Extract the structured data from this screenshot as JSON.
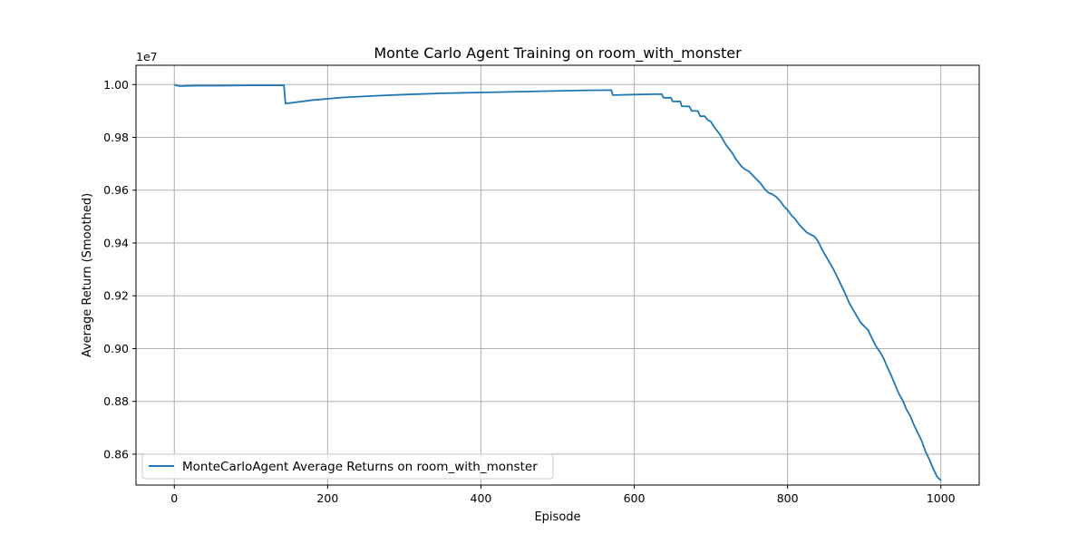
{
  "chart_data": {
    "type": "line",
    "title": "Monte Carlo Agent Training on room_with_monster",
    "xlabel": "Episode",
    "ylabel": "Average Return (Smoothed)",
    "y_offset_label": "1e7",
    "xlim": [
      -50,
      1050
    ],
    "ylim": [
      0.8483,
      1.0073
    ],
    "y_scale_factor": 10000000,
    "xticks": [
      0,
      200,
      400,
      600,
      800,
      1000
    ],
    "xtick_labels": [
      "0",
      "200",
      "400",
      "600",
      "800",
      "1000"
    ],
    "yticks": [
      0.86,
      0.88,
      0.9,
      0.92,
      0.94,
      0.96,
      0.98,
      1.0
    ],
    "ytick_labels": [
      "0.86",
      "0.88",
      "0.90",
      "0.92",
      "0.94",
      "0.96",
      "0.98",
      "1.00"
    ],
    "grid": true,
    "legend_position": "lower-left",
    "series": [
      {
        "name": "MonteCarloAgent Average Returns on room_with_monster",
        "color": "#1f77b4",
        "points": [
          [
            0,
            1.0
          ],
          [
            3,
            0.9996
          ],
          [
            8,
            0.9994
          ],
          [
            15,
            0.9995
          ],
          [
            30,
            0.9996
          ],
          [
            60,
            0.9996
          ],
          [
            100,
            0.9997
          ],
          [
            143,
            0.9997
          ],
          [
            145,
            0.9928
          ],
          [
            180,
            0.9941
          ],
          [
            220,
            0.9951
          ],
          [
            260,
            0.9957
          ],
          [
            300,
            0.9962
          ],
          [
            350,
            0.9967
          ],
          [
            400,
            0.997
          ],
          [
            450,
            0.9973
          ],
          [
            500,
            0.9976
          ],
          [
            540,
            0.9978
          ],
          [
            570,
            0.9979
          ],
          [
            572,
            0.996
          ],
          [
            600,
            0.9962
          ],
          [
            636,
            0.9964
          ],
          [
            638,
            0.995
          ],
          [
            648,
            0.995
          ],
          [
            650,
            0.9936
          ],
          [
            660,
            0.9936
          ],
          [
            662,
            0.9918
          ],
          [
            672,
            0.9917
          ],
          [
            675,
            0.99
          ],
          [
            683,
            0.99
          ],
          [
            686,
            0.988
          ],
          [
            692,
            0.988
          ],
          [
            696,
            0.9865
          ],
          [
            700,
            0.986
          ],
          [
            704,
            0.984
          ],
          [
            708,
            0.9825
          ],
          [
            712,
            0.981
          ],
          [
            716,
            0.979
          ],
          [
            720,
            0.977
          ],
          [
            724,
            0.9755
          ],
          [
            728,
            0.974
          ],
          [
            732,
            0.972
          ],
          [
            736,
            0.9705
          ],
          [
            740,
            0.969
          ],
          [
            745,
            0.9678
          ],
          [
            750,
            0.967
          ],
          [
            755,
            0.9655
          ],
          [
            760,
            0.964
          ],
          [
            765,
            0.9625
          ],
          [
            770,
            0.9605
          ],
          [
            775,
            0.959
          ],
          [
            780,
            0.9585
          ],
          [
            785,
            0.9575
          ],
          [
            790,
            0.956
          ],
          [
            795,
            0.954
          ],
          [
            800,
            0.9525
          ],
          [
            805,
            0.9505
          ],
          [
            810,
            0.949
          ],
          [
            815,
            0.947
          ],
          [
            820,
            0.9455
          ],
          [
            825,
            0.944
          ],
          [
            830,
            0.9432
          ],
          [
            835,
            0.9425
          ],
          [
            840,
            0.9405
          ],
          [
            845,
            0.9375
          ],
          [
            850,
            0.935
          ],
          [
            855,
            0.9325
          ],
          [
            860,
            0.93
          ],
          [
            865,
            0.927
          ],
          [
            870,
            0.924
          ],
          [
            875,
            0.921
          ],
          [
            880,
            0.9175
          ],
          [
            885,
            0.915
          ],
          [
            890,
            0.9125
          ],
          [
            895,
            0.91
          ],
          [
            900,
            0.9085
          ],
          [
            905,
            0.907
          ],
          [
            910,
            0.904
          ],
          [
            915,
            0.901
          ],
          [
            920,
            0.899
          ],
          [
            925,
            0.8965
          ],
          [
            930,
            0.893
          ],
          [
            935,
            0.89
          ],
          [
            940,
            0.8865
          ],
          [
            945,
            0.883
          ],
          [
            950,
            0.8805
          ],
          [
            955,
            0.877
          ],
          [
            960,
            0.8745
          ],
          [
            965,
            0.871
          ],
          [
            970,
            0.868
          ],
          [
            975,
            0.865
          ],
          [
            980,
            0.861
          ],
          [
            985,
            0.858
          ],
          [
            990,
            0.8545
          ],
          [
            995,
            0.8515
          ],
          [
            1000,
            0.85
          ]
        ]
      }
    ]
  }
}
